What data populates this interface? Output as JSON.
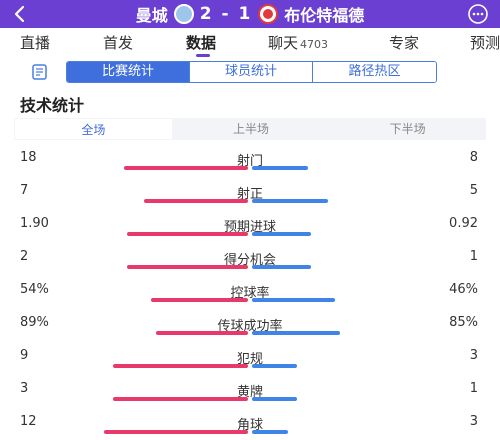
{
  "header": {
    "home_team": "曼城",
    "score": "2 - 1",
    "away_team": "布伦特福德"
  },
  "tabs": [
    {
      "label": "直播",
      "active": false
    },
    {
      "label": "首发",
      "active": false
    },
    {
      "label": "数据",
      "active": true
    },
    {
      "label": "聊天",
      "count": "4703",
      "active": false
    },
    {
      "label": "专家",
      "active": false
    },
    {
      "label": "预测",
      "active": false
    }
  ],
  "subtabs": [
    {
      "label": "比赛统计",
      "active": true
    },
    {
      "label": "球员统计",
      "active": false
    },
    {
      "label": "路径热区",
      "active": false
    }
  ],
  "section_title": "技术统计",
  "periods": [
    {
      "label": "全场",
      "active": true
    },
    {
      "label": "上半场",
      "active": false
    },
    {
      "label": "下半场",
      "active": false
    }
  ],
  "colors": {
    "accent": "#6a3fd1",
    "home_bar": "#e8396d",
    "away_bar": "#3f85e8",
    "segment": "#3f6fdc"
  },
  "stats": [
    {
      "label": "射门",
      "home": "18",
      "away": "8",
      "home_share": 0.69,
      "away_share": 0.31
    },
    {
      "label": "射正",
      "home": "7",
      "away": "5",
      "home_share": 0.58,
      "away_share": 0.42
    },
    {
      "label": "预期进球",
      "home": "1.90",
      "away": "0.92",
      "home_share": 0.67,
      "away_share": 0.33
    },
    {
      "label": "得分机会",
      "home": "2",
      "away": "1",
      "home_share": 0.67,
      "away_share": 0.33
    },
    {
      "label": "控球率",
      "home": "54%",
      "away": "46%",
      "home_share": 0.54,
      "away_share": 0.46
    },
    {
      "label": "传球成功率",
      "home": "89%",
      "away": "85%",
      "home_share": 0.51,
      "away_share": 0.49
    },
    {
      "label": "犯规",
      "home": "9",
      "away": "3",
      "home_share": 0.75,
      "away_share": 0.25
    },
    {
      "label": "黄牌",
      "home": "3",
      "away": "1",
      "home_share": 0.75,
      "away_share": 0.25
    },
    {
      "label": "角球",
      "home": "12",
      "away": "3",
      "home_share": 0.8,
      "away_share": 0.2
    }
  ]
}
